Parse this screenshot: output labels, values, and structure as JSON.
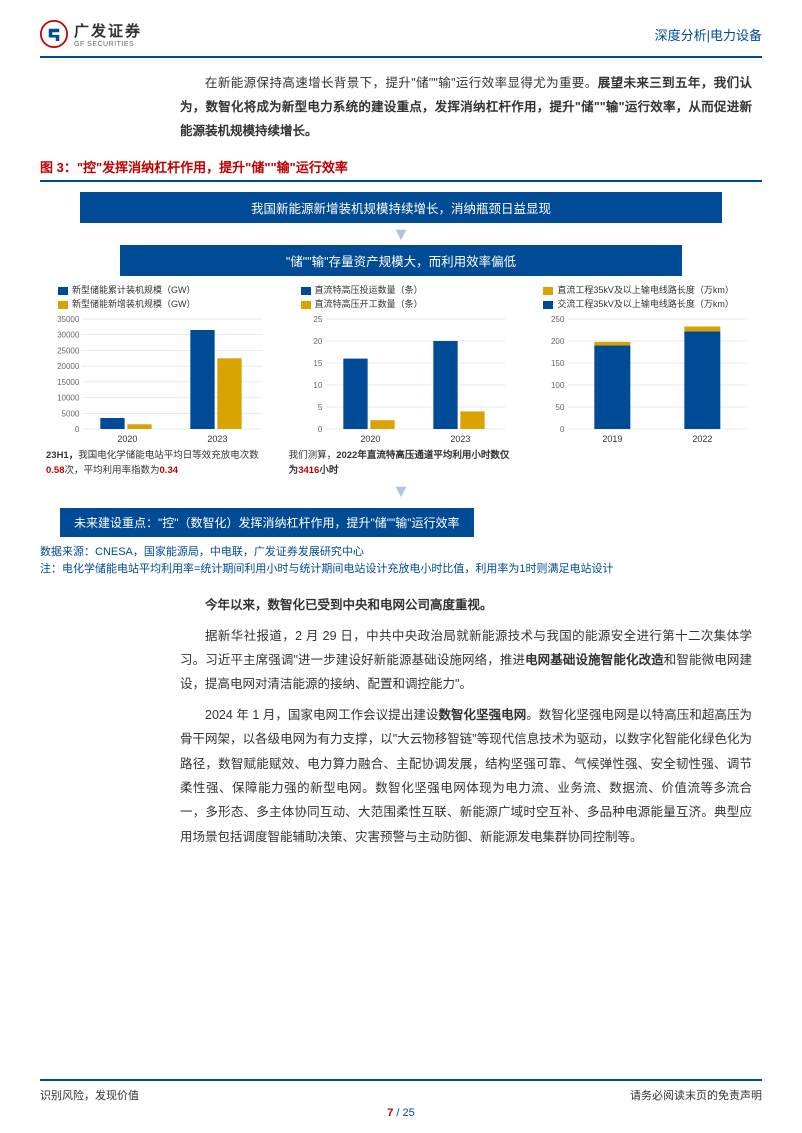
{
  "header": {
    "category": "深度分析|电力设备"
  },
  "logo": {
    "cn": "广发证券",
    "en": "GF SECURITIES"
  },
  "intro": {
    "plain_prefix": "在新能源保持高速增长背景下，提升\"储\"\"输\"运行效率显得尤为重要。",
    "bold_rest": "展望未来三到五年，我们认为，数智化将成为新型电力系统的建设重点，发挥消纳杠杆作用，提升\"储\"\"输\"运行效率，从而促进新能源装机规模持续增长。"
  },
  "figure": {
    "title": "图 3：\"控\"发挥消纳杠杆作用，提升\"储\"\"输\"运行效率",
    "banner1": "我国新能源新增装机规模持续增长，消纳瓶颈日益显现",
    "banner2": "\"储\"\"输\"存量资产规模大，而利用效率偏低",
    "bottom_left": "未来建设重点：\"控\"（数智化）发挥消纳杠杆作用，提升\"储\"\"输\"运行效率",
    "bottom_right": ""
  },
  "charts": {
    "common": {
      "blue": "#004b96",
      "gold": "#d9a400",
      "grid": "#cccccc",
      "axis": "#999999",
      "label_color": "#666666",
      "tick_fontsize": 8,
      "xlabel_fontsize": 9
    },
    "c1": {
      "type": "bar",
      "legend": [
        {
          "label": "新型储能累计装机规模（GW）",
          "color": "#004b96"
        },
        {
          "label": "新型储能新增装机规模（GW）",
          "color": "#d9a400"
        }
      ],
      "categories": [
        "2020",
        "2023"
      ],
      "series": [
        {
          "color": "#004b96",
          "values": [
            3500,
            31500
          ]
        },
        {
          "color": "#d9a400",
          "values": [
            1500,
            22500
          ]
        }
      ],
      "ylim": [
        0,
        35000
      ],
      "ytick_step": 5000,
      "note_pre": "23H1，",
      "note_mid1": "我国电化学储能电站平均日等效充放电次数",
      "red1": "0.58",
      "note_mid2": "次，平均利用率指数为",
      "red2": "0.34"
    },
    "c2": {
      "type": "bar",
      "legend": [
        {
          "label": "直流特高压投运数量（条）",
          "color": "#004b96"
        },
        {
          "label": "直流特高压开工数量（条）",
          "color": "#d9a400"
        }
      ],
      "categories": [
        "2020",
        "2023"
      ],
      "series": [
        {
          "color": "#004b96",
          "values": [
            16,
            20
          ]
        },
        {
          "color": "#d9a400",
          "values": [
            2,
            4
          ]
        }
      ],
      "ylim": [
        0,
        25
      ],
      "ytick_step": 5,
      "note_pre": "我们测算，",
      "note_mid1": "2022年直流特高压通道平均利用小时数仅为",
      "red1": "3416",
      "note_mid2": "小时"
    },
    "c3": {
      "type": "bar",
      "legend": [
        {
          "label": "直流工程35kV及以上输电线路长度（万km）",
          "color": "#d9a400"
        },
        {
          "label": "交流工程35kV及以上输电线路长度（万km）",
          "color": "#004b96"
        }
      ],
      "categories": [
        "2019",
        "2022"
      ],
      "series": [
        {
          "color": "#004b96",
          "values": [
            190,
            222
          ]
        },
        {
          "color": "#d9a400",
          "values": [
            8,
            11
          ]
        }
      ],
      "stacked": true,
      "ylim": [
        0,
        250
      ],
      "ytick_step": 50
    }
  },
  "source": "数据来源：CNESA，国家能源局，中电联，广发证券发展研究中心",
  "note": "注：电化学储能电站平均利用率=统计期间利用小时与统计期间电站设计充放电小时比值，利用率为1时则满足电站设计",
  "body": {
    "p1_lead": "今年以来，数智化已受到中央和电网公司高度重视。",
    "p2": {
      "a": "据新华社报道，2 月 29 日，中共中央政治局就新能源技术与我国的能源安全进行第十二次集体学习。习近平主席强调\"进一步建设好新能源基础设施网络，推进",
      "kw": "电网基础设施智能化改造",
      "b": "和智能微电网建设，提高电网对清洁能源的接纳、配置和调控能力\"。"
    },
    "p3": {
      "a": "2024 年 1 月，国家电网工作会议提出建设",
      "kw": "数智化坚强电网",
      "b": "。数智化坚强电网是以特高压和超高压为骨干网架，以各级电网为有力支撑，以\"大云物移智链\"等现代信息技术为驱动，以数字化智能化绿色化为路径，数智赋能赋效、电力算力融合、主配协调发展，结构坚强可靠、气候弹性强、安全韧性强、调节柔性强、保障能力强的新型电网。数智化坚强电网体现为电力流、业务流、数据流、价值流等多流合一，多形态、多主体协同互动、大范围柔性互联、新能源广域时空互补、多品种电源能量互济。典型应用场景包括调度智能辅助决策、灾害预警与主动防御、新能源发电集群协同控制等。"
    }
  },
  "footer": {
    "left": "识别风险，发现价值",
    "right": "请务必阅读末页的免责声明",
    "page_cur": "7",
    "page_sep": " / ",
    "page_total": "25"
  }
}
